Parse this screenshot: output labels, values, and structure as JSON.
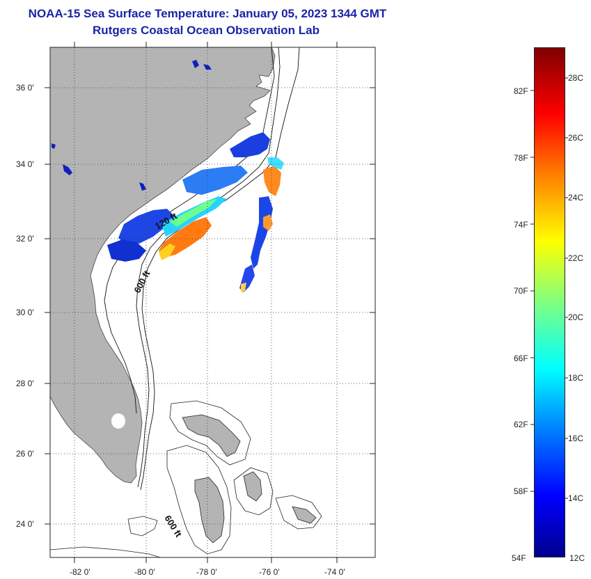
{
  "header": {
    "title": "NOAA-15 Sea Surface Temperature:  January 05, 2023 1344 GMT",
    "subtitle": "Rutgers Coastal Ocean Observation Lab"
  },
  "map": {
    "lat_labels": [
      "36 0'",
      "34 0'",
      "32 0'",
      "30 0'",
      "28 0'",
      "26 0'",
      "24 0'"
    ],
    "lon_labels": [
      "-82 0'",
      "-80 0'",
      "-78 0'",
      "-76 0'",
      "-74 0'"
    ],
    "lat_range": [
      23.0,
      37.0
    ],
    "lon_range": [
      -83.0,
      -72.6
    ],
    "contour_labels": [
      "120 ft",
      "600 ft",
      "600 ft"
    ],
    "colors": {
      "land": "#b4b4b4",
      "grid": "#333333"
    }
  },
  "colorbar": {
    "fahrenheit_labels": [
      "82F",
      "78F",
      "74F",
      "70F",
      "66F",
      "62F",
      "58F",
      "54F"
    ],
    "celsius_labels": [
      "28C",
      "26C",
      "24C",
      "22C",
      "20C",
      "18C",
      "16C",
      "14C",
      "12C"
    ],
    "colors": [
      "#800000",
      "#ff0000",
      "#ff8000",
      "#ffff00",
      "#80ff80",
      "#00ffff",
      "#0080ff",
      "#0000ff",
      "#00008f"
    ]
  }
}
